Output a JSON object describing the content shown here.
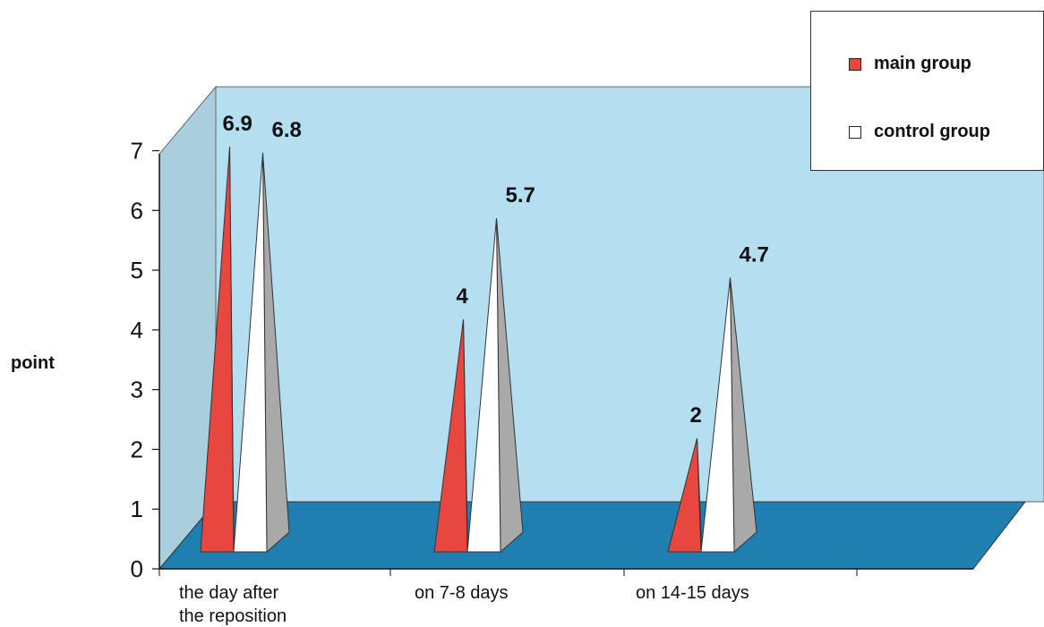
{
  "chart_data": {
    "type": "bar",
    "style": "3d-pyramid",
    "categories": [
      [
        "the day after",
        "the reposition"
      ],
      [
        "on 7-8 days"
      ],
      [
        "on 14-15 days"
      ]
    ],
    "series": [
      {
        "name": "main group",
        "values": [
          6.9,
          4,
          2
        ],
        "labels": [
          "6.9",
          "4",
          "2"
        ],
        "color": "#e8473f"
      },
      {
        "name": "control group",
        "values": [
          6.8,
          5.7,
          4.7
        ],
        "labels": [
          "6.8",
          "5.7",
          "4.7"
        ],
        "color": "#ffffff"
      }
    ],
    "ylabel": "point",
    "ylim": [
      0,
      7
    ],
    "yticks": [
      "0",
      "1",
      "2",
      "3",
      "4",
      "5",
      "6",
      "7"
    ],
    "legend_position": "top-right",
    "colors": {
      "back_wall": "#b3dff0",
      "side_wall": "#a9cfdf",
      "floor": "#1f7fb0"
    }
  }
}
